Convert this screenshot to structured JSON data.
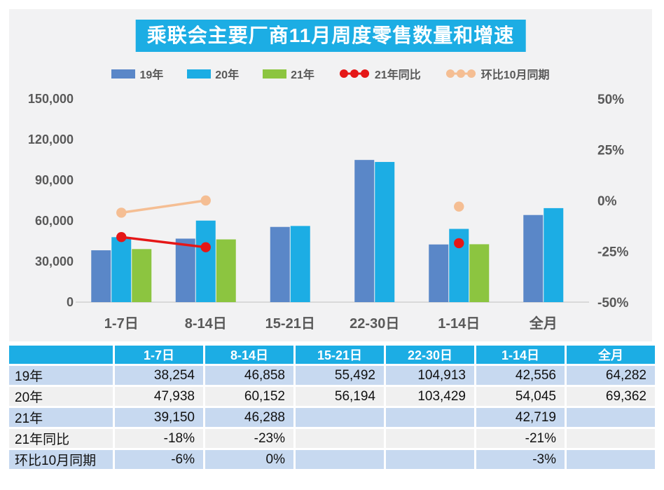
{
  "colors": {
    "accent": "#1CADE4",
    "panel_bg": "#F2F2F3",
    "row_blue": "#C7D9F0",
    "row_gray": "#F0F0F0",
    "axis_text": "#595959",
    "baseline": "#D9D9D9",
    "series_19": "#5A87C8",
    "series_20": "#1CADE4",
    "series_21": "#8CC540",
    "series_yoy": "#E51717",
    "series_mom": "#F5BE93"
  },
  "chart_data": {
    "type": "combo-bar-line",
    "title": "乘联会主要厂商11月周度零售数量和增速",
    "categories": [
      "1-7日",
      "8-14日",
      "15-21日",
      "22-30日",
      "1-14日",
      "全月"
    ],
    "bar_series": [
      {
        "name": "19年",
        "color": "#5A87C8",
        "values": [
          38254,
          46858,
          55492,
          104913,
          42556,
          64282
        ]
      },
      {
        "name": "20年",
        "color": "#1CADE4",
        "values": [
          47938,
          60152,
          56194,
          103429,
          54045,
          69362
        ]
      },
      {
        "name": "21年",
        "color": "#8CC540",
        "values": [
          39150,
          46288,
          null,
          null,
          42719,
          null
        ]
      }
    ],
    "line_series": [
      {
        "name": "21年同比",
        "color": "#E51717",
        "values_pct": [
          -18,
          -23,
          null,
          null,
          -21,
          null
        ]
      },
      {
        "name": "环比10月同期",
        "color": "#F5BE93",
        "values_pct": [
          -6,
          0,
          null,
          null,
          -3,
          null
        ]
      }
    ],
    "left_axis": {
      "min": 0,
      "max": 150000,
      "ticks": [
        0,
        30000,
        60000,
        90000,
        120000,
        150000
      ],
      "labels": [
        "0",
        "30,000",
        "60,000",
        "90,000",
        "120,000",
        "150,000"
      ]
    },
    "right_axis": {
      "min": -50,
      "max": 50,
      "ticks": [
        -50,
        -25,
        0,
        25,
        50
      ],
      "labels": [
        "-50%",
        "-25%",
        "0%",
        "25%",
        "50%"
      ]
    },
    "legend_position": "top",
    "gridlines": false
  },
  "table": {
    "columns": [
      "",
      "1-7日",
      "8-14日",
      "15-21日",
      "22-30日",
      "1-14日",
      "全月"
    ],
    "rows": [
      {
        "label": "19年",
        "values": [
          "38,254",
          "46,858",
          "55,492",
          "104,913",
          "42,556",
          "64,282"
        ]
      },
      {
        "label": "20年",
        "values": [
          "47,938",
          "60,152",
          "56,194",
          "103,429",
          "54,045",
          "69,362"
        ]
      },
      {
        "label": "21年",
        "values": [
          "39,150",
          "46,288",
          "",
          "",
          "42,719",
          ""
        ]
      },
      {
        "label": "21年同比",
        "values": [
          "-18%",
          "-23%",
          "",
          "",
          "-21%",
          ""
        ]
      },
      {
        "label": "环比10月同期",
        "values": [
          "-6%",
          "0%",
          "",
          "",
          "-3%",
          ""
        ]
      }
    ]
  }
}
